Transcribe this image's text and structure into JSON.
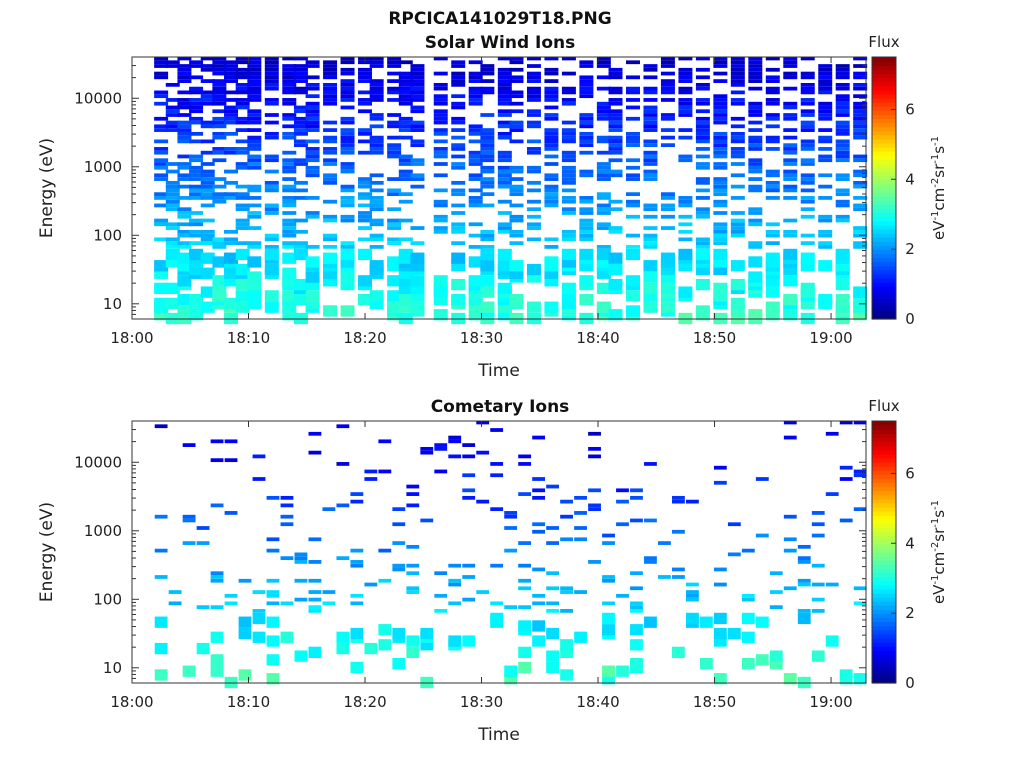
{
  "figure": {
    "title": "RPCICA141029T18.PNG"
  },
  "chart_data": [
    {
      "type": "heatmap",
      "title": "Solar Wind Ions",
      "xlabel": "Time",
      "ylabel": "Energy (eV)",
      "x_ticks": [
        "18:00",
        "18:10",
        "18:20",
        "18:30",
        "18:40",
        "18:50",
        "19:00"
      ],
      "xlim_minutes": [
        0,
        63
      ],
      "y_ticks": [
        10,
        100,
        1000,
        10000
      ],
      "y_tick_labels": [
        "10",
        "100",
        "1000",
        "10000"
      ],
      "ylim": [
        6,
        40000
      ],
      "y_scale": "log",
      "colorbar": {
        "label": "Flux",
        "unit_text": "eV-1cm-2sr-1s-1",
        "ticks": [
          0,
          2,
          4,
          6
        ],
        "range": [
          0,
          7.5
        ],
        "colormap": "jet"
      },
      "active_columns_minutes": [
        2.5,
        3.5,
        4.5,
        5.5,
        6.5,
        7.5,
        8.5,
        9.5,
        10.5,
        12,
        13.5,
        14.5,
        15.5,
        17,
        18.5,
        20,
        21,
        22.5,
        23.5,
        24.5,
        26.5,
        28,
        29.5,
        30.5,
        32,
        33,
        34.5,
        36,
        37.5,
        39,
        40.5,
        41.5,
        43,
        44.5,
        46,
        47.5,
        49,
        50.5,
        52,
        53.5,
        55,
        56.5,
        58,
        59.5,
        61,
        62.5
      ],
      "flux_range": [
        0.5,
        3.2
      ]
    },
    {
      "type": "heatmap",
      "title": "Cometary Ions",
      "xlabel": "Time",
      "ylabel": "Energy (eV)",
      "x_ticks": [
        "18:00",
        "18:10",
        "18:20",
        "18:30",
        "18:40",
        "18:50",
        "19:00"
      ],
      "xlim_minutes": [
        0,
        63
      ],
      "y_ticks": [
        10,
        100,
        1000,
        10000
      ],
      "y_tick_labels": [
        "10",
        "100",
        "1000",
        "10000"
      ],
      "ylim": [
        6,
        40000
      ],
      "y_scale": "log",
      "colorbar": {
        "label": "Flux",
        "unit_text": "eV-1cm-2sr-1s-1",
        "ticks": [
          0,
          2,
          4,
          6
        ],
        "range": [
          0,
          7.5
        ],
        "colormap": "jet"
      },
      "flux_range": [
        0.5,
        3.3
      ]
    }
  ]
}
